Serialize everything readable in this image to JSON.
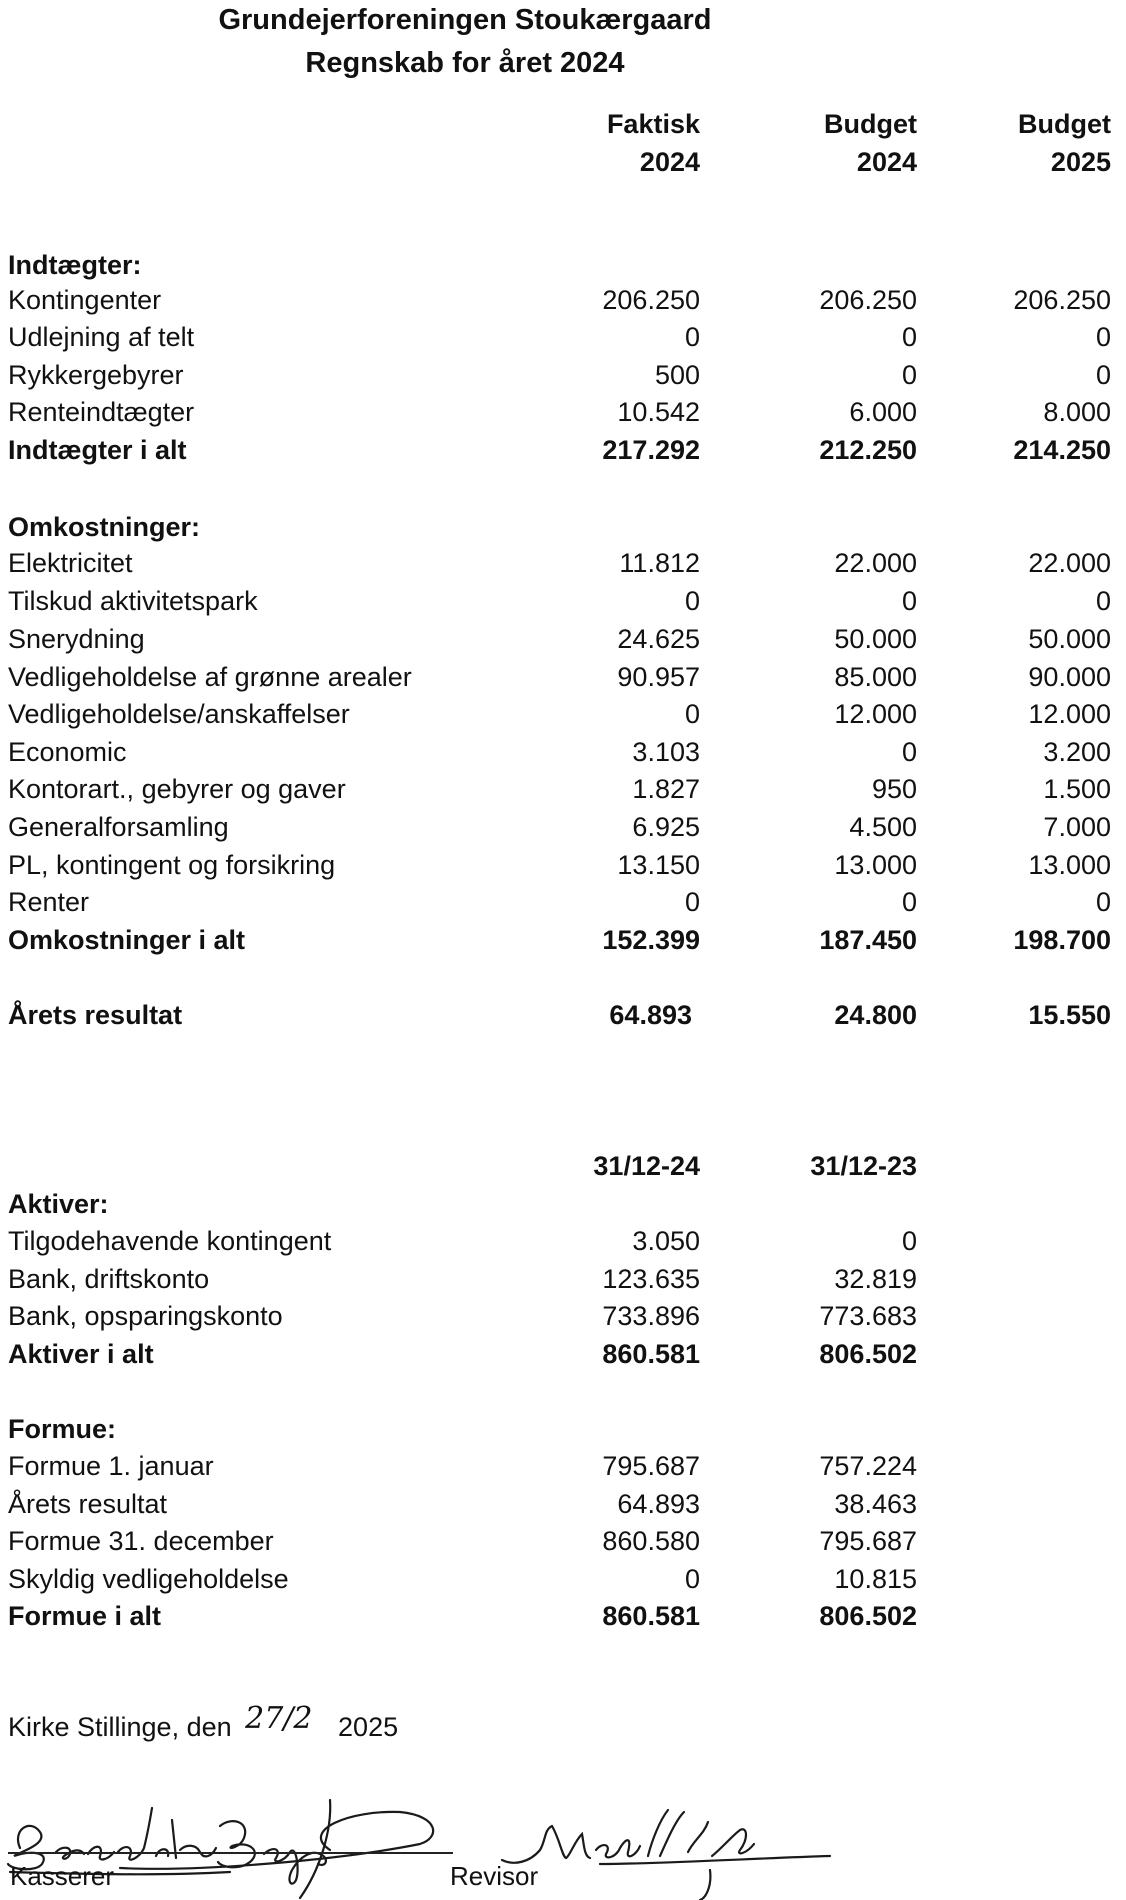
{
  "header": {
    "title": "Grundejerforeningen Stoukærgaard",
    "subtitle": "Regnskab for året 2024"
  },
  "columns": [
    {
      "line1": "Faktisk",
      "line2": "2024"
    },
    {
      "line1": "Budget",
      "line2": "2024"
    },
    {
      "line1": "Budget",
      "line2": "2025"
    }
  ],
  "income": {
    "heading": "Indtægter:",
    "rows": [
      {
        "label": "Kontingenter",
        "values": [
          "206.250",
          "206.250",
          "206.250"
        ]
      },
      {
        "label": "Udlejning af telt",
        "values": [
          "0",
          "0",
          "0"
        ]
      },
      {
        "label": "Rykkergebyrer",
        "values": [
          "500",
          "0",
          "0"
        ]
      },
      {
        "label": "Renteindtægter",
        "values": [
          "10.542",
          "6.000",
          "8.000"
        ]
      }
    ],
    "total": {
      "label": "Indtægter i alt",
      "values": [
        "217.292",
        "212.250",
        "214.250"
      ]
    }
  },
  "expenses": {
    "heading": "Omkostninger:",
    "rows": [
      {
        "label": "Elektricitet",
        "values": [
          "11.812",
          "22.000",
          "22.000"
        ]
      },
      {
        "label": "Tilskud aktivitetspark",
        "values": [
          "0",
          "0",
          "0"
        ]
      },
      {
        "label": "Snerydning",
        "values": [
          "24.625",
          "50.000",
          "50.000"
        ]
      },
      {
        "label": "Vedligeholdelse af grønne arealer",
        "values": [
          "90.957",
          "85.000",
          "90.000"
        ]
      },
      {
        "label": "Vedligeholdelse/anskaffelser",
        "values": [
          "0",
          "12.000",
          "12.000"
        ]
      },
      {
        "label": "Economic",
        "values": [
          "3.103",
          "0",
          "3.200"
        ]
      },
      {
        "label": "Kontorart., gebyrer og gaver",
        "values": [
          "1.827",
          "950",
          "1.500"
        ]
      },
      {
        "label": "Generalforsamling",
        "values": [
          "6.925",
          "4.500",
          "7.000"
        ]
      },
      {
        "label": "PL, kontingent og forsikring",
        "values": [
          "13.150",
          "13.000",
          "13.000"
        ]
      },
      {
        "label": "Renter",
        "values": [
          "0",
          "0",
          "0"
        ]
      }
    ],
    "total": {
      "label": "Omkostninger i alt",
      "values": [
        "152.399",
        "187.450",
        "198.700"
      ]
    }
  },
  "result": {
    "label": "Årets resultat",
    "values": [
      "64.893",
      "24.800",
      "15.550"
    ]
  },
  "balance_columns": [
    "31/12-24",
    "31/12-23"
  ],
  "assets": {
    "heading": "Aktiver:",
    "rows": [
      {
        "label": "Tilgodehavende kontingent",
        "values": [
          "3.050",
          "0"
        ]
      },
      {
        "label": "Bank, driftskonto",
        "values": [
          "123.635",
          "32.819"
        ]
      },
      {
        "label": "Bank, opsparingskonto",
        "values": [
          "733.896",
          "773.683"
        ]
      }
    ],
    "total": {
      "label": "Aktiver i alt",
      "values": [
        "860.581",
        "806.502"
      ]
    }
  },
  "equity": {
    "heading": "Formue:",
    "rows": [
      {
        "label": "Formue 1. januar",
        "values": [
          "795.687",
          "757.224"
        ]
      },
      {
        "label": "Årets resultat",
        "values": [
          "64.893",
          "38.463"
        ]
      },
      {
        "label": "Formue 31. december",
        "values": [
          "860.580",
          "795.687"
        ]
      },
      {
        "label": "Skyldig vedligeholdelse",
        "values": [
          "0",
          "10.815"
        ]
      }
    ],
    "total": {
      "label": "Formue i alt",
      "values": [
        "860.581",
        "806.502"
      ]
    }
  },
  "footer": {
    "place": "Kirke Stillinge, den",
    "date_handwritten": "27/2",
    "year": "2025",
    "signatures": [
      "Benedikte Bergen",
      "Mads"
    ],
    "roles": [
      "Kasserer",
      "Revisor"
    ]
  }
}
